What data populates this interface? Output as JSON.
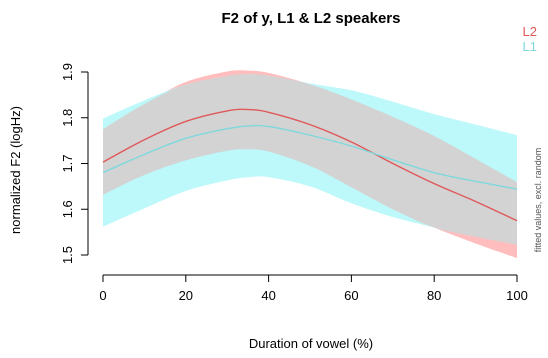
{
  "chart_data": {
    "type": "line",
    "title": "F2 of y, L1 & L2 speakers",
    "xlabel": "Duration of vowel (%)",
    "ylabel": "normalized F2 (logHz)",
    "side_note": "fitted values, excl. random",
    "xlim": [
      0,
      100
    ],
    "ylim": [
      1.5,
      1.9
    ],
    "xticks": [
      "0",
      "20",
      "40",
      "60",
      "80",
      "100"
    ],
    "yticks": [
      "1.5",
      "1.6",
      "1.7",
      "1.8",
      "1.9"
    ],
    "grid": false,
    "legend_position": "top-right",
    "x": [
      0,
      10,
      20,
      30,
      35,
      40,
      50,
      60,
      70,
      80,
      90,
      100
    ],
    "series": [
      {
        "name": "L2",
        "color": "#e05858",
        "band_color": "#ffb2b2",
        "y": [
          1.703,
          1.752,
          1.792,
          1.815,
          1.818,
          1.812,
          1.785,
          1.747,
          1.7,
          1.656,
          1.617,
          1.575
        ],
        "lower": [
          1.632,
          1.675,
          1.707,
          1.728,
          1.731,
          1.726,
          1.695,
          1.648,
          1.6,
          1.56,
          1.525,
          1.493
        ],
        "upper": [
          1.775,
          1.83,
          1.878,
          1.901,
          1.903,
          1.898,
          1.873,
          1.84,
          1.802,
          1.76,
          1.71,
          1.659
        ]
      },
      {
        "name": "L1",
        "color": "#7fd8dc",
        "band_color": "#b2f7f9",
        "y": [
          1.68,
          1.72,
          1.755,
          1.776,
          1.782,
          1.781,
          1.762,
          1.738,
          1.708,
          1.68,
          1.661,
          1.644
        ],
        "lower": [
          1.562,
          1.602,
          1.64,
          1.663,
          1.67,
          1.67,
          1.65,
          1.613,
          1.583,
          1.56,
          1.54,
          1.523
        ],
        "upper": [
          1.798,
          1.838,
          1.872,
          1.891,
          1.895,
          1.892,
          1.875,
          1.86,
          1.835,
          1.808,
          1.785,
          1.762
        ]
      }
    ]
  }
}
